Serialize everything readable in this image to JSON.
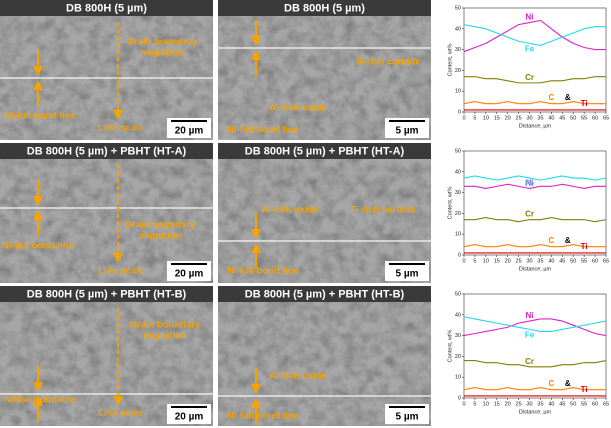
{
  "panels": [
    {
      "title": "DB 800H (5 µm)",
      "labels": [
        "Grain boundary",
        "migration",
        "Ni-foil bond line",
        "Line scan"
      ],
      "scale": "20 µm"
    },
    {
      "title": "DB 800H (5 µm)",
      "labels": [
        "Al-rich oxide",
        "Ti-rich carbide",
        "Ni-foil bond line"
      ],
      "scale": "5 µm"
    },
    {
      "title": "DB 800H (5 µm) + PBHT (HT-A)",
      "labels": [
        "Ni-foil bond line",
        "Grain boundary",
        "migration",
        "Line scan"
      ],
      "scale": "20 µm"
    },
    {
      "title": "DB 800H (5 µm) + PBHT (HT-A)",
      "labels": [
        "Al-rich oxide",
        "Ti-rich carbide",
        "Ni-foil bond line"
      ],
      "scale": "5 µm"
    },
    {
      "title": "DB 800H (5 µm) + PBHT (HT-B)",
      "labels": [
        "Grain boundary",
        "migration",
        "Ni-foil bond line",
        "Line scan"
      ],
      "scale": "20 µm"
    },
    {
      "title": "DB 800H (5 µm) + PBHT (HT-B)",
      "labels": [
        "Al-rich oxide",
        "Ni-foil bond line"
      ],
      "scale": "5 µm"
    }
  ],
  "chart_data": [
    {
      "type": "line",
      "xlabel": "Distance, µm",
      "ylabel": "Content, wt%",
      "annotation": "&",
      "x": [
        0,
        5,
        10,
        15,
        20,
        25,
        30,
        35,
        40,
        45,
        50,
        55,
        60,
        65
      ],
      "xlim": [
        0,
        65
      ],
      "xticks": [
        0,
        5,
        10,
        15,
        20,
        25,
        30,
        35,
        40,
        45,
        50,
        55,
        60,
        65
      ],
      "ylim": [
        0,
        50
      ],
      "yticks": [
        0,
        10,
        20,
        30,
        40,
        50
      ],
      "series": [
        {
          "name": "Ni",
          "color": "#e020c8",
          "values": [
            29,
            31,
            33,
            36,
            39,
            42,
            43,
            44,
            40,
            36,
            33,
            31,
            30,
            30
          ]
        },
        {
          "name": "Fe",
          "color": "#22d8ea",
          "values": [
            42,
            41,
            40,
            38,
            36,
            34,
            33,
            32,
            34,
            36,
            38,
            40,
            41,
            41
          ]
        },
        {
          "name": "Cr",
          "color": "#808000",
          "values": [
            17,
            17,
            16,
            16,
            15,
            14,
            14,
            14,
            15,
            15,
            16,
            16,
            17,
            17
          ]
        },
        {
          "name": "C",
          "color": "#ff7f00",
          "values": [
            4,
            5,
            4,
            4,
            5,
            4,
            4,
            5,
            4,
            4,
            5,
            4,
            4,
            4
          ]
        },
        {
          "name": "Ti",
          "color": "#e00000",
          "values": [
            1,
            1,
            1,
            1,
            1,
            1,
            1,
            1,
            1,
            1,
            1,
            1,
            1,
            1
          ]
        }
      ]
    },
    {
      "type": "line",
      "xlabel": "Distance, µm",
      "ylabel": "Content, wt%",
      "annotation": "&",
      "x": [
        0,
        5,
        10,
        15,
        20,
        25,
        30,
        35,
        40,
        45,
        50,
        55,
        60,
        65
      ],
      "xlim": [
        0,
        65
      ],
      "xticks": [
        0,
        5,
        10,
        15,
        20,
        25,
        30,
        35,
        40,
        45,
        50,
        55,
        60,
        65
      ],
      "ylim": [
        0,
        50
      ],
      "yticks": [
        0,
        10,
        20,
        30,
        40,
        50
      ],
      "series": [
        {
          "name": "Ni",
          "color": "#e020c8",
          "values": [
            33,
            33,
            32,
            33,
            34,
            33,
            32,
            33,
            33,
            34,
            33,
            32,
            33,
            33
          ]
        },
        {
          "name": "Fe",
          "color": "#22d8ea",
          "values": [
            37,
            38,
            37,
            36,
            37,
            38,
            37,
            36,
            37,
            38,
            37,
            37,
            36,
            37
          ]
        },
        {
          "name": "Cr",
          "color": "#808000",
          "values": [
            17,
            17,
            18,
            17,
            17,
            16,
            17,
            17,
            18,
            17,
            17,
            17,
            16,
            17
          ]
        },
        {
          "name": "C",
          "color": "#ff7f00",
          "values": [
            4,
            5,
            4,
            4,
            5,
            4,
            4,
            5,
            4,
            4,
            5,
            4,
            4,
            4
          ]
        },
        {
          "name": "Ti",
          "color": "#e00000",
          "values": [
            1,
            1,
            1,
            1,
            1,
            1,
            1,
            1,
            1,
            1,
            1,
            1,
            1,
            1
          ]
        }
      ]
    },
    {
      "type": "line",
      "xlabel": "Distance, µm",
      "ylabel": "Content, wt%",
      "annotation": "&",
      "x": [
        0,
        5,
        10,
        15,
        20,
        25,
        30,
        35,
        40,
        45,
        50,
        55,
        60,
        65
      ],
      "xlim": [
        0,
        65
      ],
      "xticks": [
        0,
        5,
        10,
        15,
        20,
        25,
        30,
        35,
        40,
        45,
        50,
        55,
        60,
        65
      ],
      "ylim": [
        0,
        50
      ],
      "yticks": [
        0,
        10,
        20,
        30,
        40,
        50
      ],
      "series": [
        {
          "name": "Ni",
          "color": "#e020c8",
          "values": [
            30,
            31,
            32,
            33,
            34,
            36,
            37,
            38,
            38,
            37,
            35,
            33,
            31,
            30
          ]
        },
        {
          "name": "Fe",
          "color": "#22d8ea",
          "values": [
            39,
            38,
            37,
            36,
            35,
            34,
            33,
            32,
            32,
            33,
            34,
            35,
            36,
            37
          ]
        },
        {
          "name": "Cr",
          "color": "#808000",
          "values": [
            18,
            18,
            17,
            17,
            16,
            16,
            15,
            15,
            15,
            16,
            16,
            17,
            17,
            18
          ]
        },
        {
          "name": "C",
          "color": "#ff7f00",
          "values": [
            4,
            5,
            4,
            4,
            5,
            4,
            4,
            5,
            4,
            4,
            5,
            4,
            4,
            4
          ]
        },
        {
          "name": "Ti",
          "color": "#e00000",
          "values": [
            1,
            1,
            1,
            1,
            1,
            1,
            1,
            1,
            1,
            1,
            1,
            1,
            1,
            1
          ]
        }
      ]
    }
  ]
}
